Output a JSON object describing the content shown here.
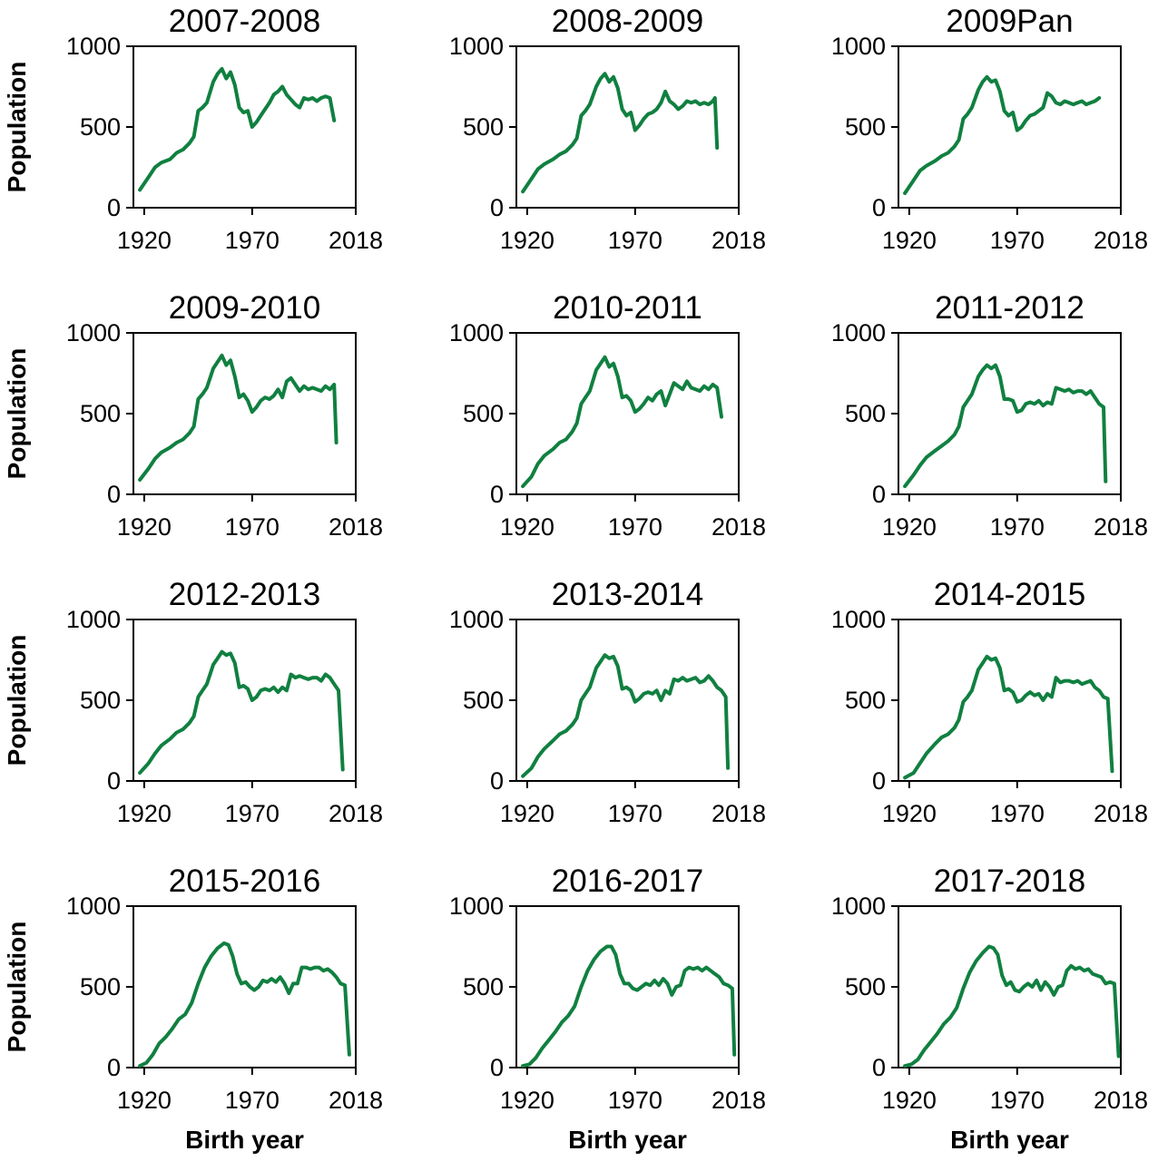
{
  "line_color": "#108040",
  "chart_data": [
    {
      "type": "line",
      "title": "2007-2008",
      "xlabel": "",
      "ylabel": "Population",
      "xlim": [
        1915,
        2018
      ],
      "ylim": [
        0,
        1000
      ],
      "xticks": [
        1920,
        1970,
        2018
      ],
      "yticks": [
        0,
        500,
        1000
      ],
      "x": [
        1918,
        1922,
        1925,
        1928,
        1932,
        1935,
        1938,
        1941,
        1943,
        1945,
        1947,
        1949,
        1952,
        1954,
        1956,
        1958,
        1960,
        1962,
        1964,
        1966,
        1968,
        1970,
        1972,
        1974,
        1976,
        1978,
        1980,
        1982,
        1984,
        1986,
        1988,
        1990,
        1992,
        1994,
        1996,
        1998,
        2000,
        2002,
        2004,
        2006,
        2008
      ],
      "y": [
        110,
        190,
        250,
        280,
        300,
        340,
        360,
        400,
        440,
        600,
        620,
        650,
        780,
        830,
        860,
        800,
        840,
        760,
        620,
        590,
        600,
        500,
        530,
        570,
        610,
        650,
        700,
        720,
        750,
        700,
        670,
        640,
        620,
        680,
        670,
        680,
        660,
        680,
        690,
        680,
        540
      ]
    },
    {
      "type": "line",
      "title": "2008-2009",
      "xlabel": "",
      "ylabel": "",
      "xlim": [
        1915,
        2018
      ],
      "ylim": [
        0,
        1000
      ],
      "xticks": [
        1920,
        1970,
        2018
      ],
      "yticks": [
        0,
        500,
        1000
      ],
      "x": [
        1918,
        1922,
        1925,
        1928,
        1932,
        1935,
        1938,
        1941,
        1943,
        1945,
        1947,
        1949,
        1952,
        1954,
        1956,
        1958,
        1960,
        1962,
        1964,
        1966,
        1968,
        1970,
        1972,
        1974,
        1976,
        1978,
        1980,
        1982,
        1984,
        1986,
        1988,
        1990,
        1992,
        1994,
        1996,
        1998,
        2000,
        2002,
        2004,
        2006,
        2007,
        2008
      ],
      "y": [
        100,
        180,
        240,
        270,
        300,
        330,
        350,
        390,
        430,
        570,
        600,
        640,
        750,
        800,
        830,
        780,
        810,
        740,
        610,
        570,
        590,
        480,
        510,
        550,
        580,
        590,
        610,
        650,
        720,
        660,
        640,
        610,
        630,
        660,
        650,
        660,
        640,
        650,
        640,
        660,
        680,
        370
      ]
    },
    {
      "type": "line",
      "title": "2009Pan",
      "xlabel": "",
      "ylabel": "",
      "xlim": [
        1915,
        2018
      ],
      "ylim": [
        0,
        1000
      ],
      "xticks": [
        1920,
        1970,
        2018
      ],
      "yticks": [
        0,
        500,
        1000
      ],
      "x": [
        1918,
        1922,
        1925,
        1928,
        1932,
        1935,
        1938,
        1941,
        1943,
        1945,
        1947,
        1949,
        1952,
        1954,
        1956,
        1958,
        1960,
        1962,
        1964,
        1966,
        1968,
        1970,
        1972,
        1974,
        1976,
        1978,
        1980,
        1982,
        1984,
        1986,
        1988,
        1990,
        1992,
        1994,
        1996,
        1998,
        2000,
        2002,
        2004,
        2006,
        2008
      ],
      "y": [
        90,
        170,
        230,
        260,
        290,
        320,
        340,
        380,
        420,
        550,
        580,
        620,
        730,
        780,
        810,
        780,
        790,
        720,
        600,
        570,
        590,
        480,
        500,
        540,
        570,
        580,
        600,
        620,
        710,
        690,
        650,
        640,
        660,
        650,
        640,
        650,
        660,
        640,
        650,
        660,
        680
      ]
    },
    {
      "type": "line",
      "title": "2009-2010",
      "xlabel": "",
      "ylabel": "Population",
      "xlim": [
        1915,
        2018
      ],
      "ylim": [
        0,
        1000
      ],
      "xticks": [
        1920,
        1970,
        2018
      ],
      "yticks": [
        0,
        500,
        1000
      ],
      "x": [
        1918,
        1922,
        1925,
        1928,
        1932,
        1935,
        1938,
        1941,
        1943,
        1945,
        1947,
        1949,
        1952,
        1954,
        1956,
        1958,
        1960,
        1962,
        1964,
        1966,
        1968,
        1970,
        1972,
        1974,
        1976,
        1978,
        1980,
        1982,
        1984,
        1986,
        1988,
        1990,
        1992,
        1994,
        1996,
        1998,
        2000,
        2002,
        2004,
        2006,
        2008,
        2009
      ],
      "y": [
        90,
        160,
        220,
        260,
        290,
        320,
        340,
        380,
        420,
        590,
        620,
        660,
        780,
        820,
        860,
        800,
        830,
        730,
        600,
        620,
        580,
        510,
        540,
        580,
        600,
        590,
        610,
        650,
        600,
        700,
        720,
        680,
        640,
        670,
        650,
        660,
        650,
        640,
        670,
        650,
        680,
        320
      ]
    },
    {
      "type": "line",
      "title": "2010-2011",
      "xlabel": "",
      "ylabel": "",
      "xlim": [
        1915,
        2018
      ],
      "ylim": [
        0,
        1000
      ],
      "xticks": [
        1920,
        1970,
        2018
      ],
      "yticks": [
        0,
        500,
        1000
      ],
      "x": [
        1918,
        1922,
        1925,
        1928,
        1932,
        1935,
        1938,
        1941,
        1943,
        1945,
        1947,
        1949,
        1952,
        1954,
        1956,
        1958,
        1960,
        1962,
        1964,
        1966,
        1968,
        1970,
        1972,
        1974,
        1976,
        1978,
        1980,
        1982,
        1984,
        1986,
        1988,
        1990,
        1992,
        1994,
        1996,
        1998,
        2000,
        2002,
        2004,
        2006,
        2008,
        2010
      ],
      "y": [
        50,
        110,
        190,
        240,
        280,
        320,
        340,
        390,
        440,
        560,
        600,
        640,
        770,
        810,
        850,
        790,
        810,
        730,
        600,
        610,
        580,
        510,
        530,
        560,
        600,
        580,
        620,
        640,
        550,
        620,
        690,
        670,
        650,
        700,
        660,
        650,
        640,
        670,
        650,
        680,
        660,
        480
      ]
    },
    {
      "type": "line",
      "title": "2011-2012",
      "xlabel": "",
      "ylabel": "",
      "xlim": [
        1915,
        2018
      ],
      "ylim": [
        0,
        1000
      ],
      "xticks": [
        1920,
        1970,
        2018
      ],
      "yticks": [
        0,
        500,
        1000
      ],
      "x": [
        1918,
        1922,
        1925,
        1928,
        1932,
        1935,
        1938,
        1941,
        1943,
        1945,
        1947,
        1949,
        1952,
        1954,
        1956,
        1958,
        1960,
        1962,
        1964,
        1966,
        1968,
        1970,
        1972,
        1974,
        1976,
        1978,
        1980,
        1982,
        1984,
        1986,
        1988,
        1990,
        1992,
        1994,
        1996,
        1998,
        2000,
        2002,
        2004,
        2006,
        2008,
        2010,
        2011
      ],
      "y": [
        50,
        120,
        180,
        230,
        270,
        300,
        330,
        370,
        420,
        540,
        580,
        620,
        730,
        770,
        800,
        780,
        800,
        730,
        590,
        590,
        580,
        510,
        520,
        560,
        570,
        560,
        580,
        550,
        570,
        560,
        660,
        650,
        640,
        650,
        630,
        640,
        640,
        620,
        640,
        600,
        560,
        540,
        80
      ]
    },
    {
      "type": "line",
      "title": "2012-2013",
      "xlabel": "",
      "ylabel": "Population",
      "xlim": [
        1915,
        2018
      ],
      "ylim": [
        0,
        1000
      ],
      "xticks": [
        1920,
        1970,
        2018
      ],
      "yticks": [
        0,
        500,
        1000
      ],
      "x": [
        1918,
        1922,
        1925,
        1928,
        1932,
        1935,
        1938,
        1941,
        1943,
        1945,
        1947,
        1949,
        1952,
        1954,
        1956,
        1958,
        1960,
        1962,
        1964,
        1966,
        1968,
        1970,
        1972,
        1974,
        1976,
        1978,
        1980,
        1982,
        1984,
        1986,
        1988,
        1990,
        1992,
        1994,
        1996,
        1998,
        2000,
        2002,
        2004,
        2006,
        2008,
        2010,
        2012
      ],
      "y": [
        50,
        110,
        170,
        220,
        260,
        300,
        320,
        360,
        400,
        520,
        560,
        600,
        720,
        760,
        800,
        780,
        790,
        730,
        580,
        590,
        570,
        500,
        520,
        560,
        570,
        560,
        580,
        550,
        580,
        560,
        660,
        640,
        650,
        640,
        630,
        640,
        640,
        620,
        660,
        640,
        600,
        560,
        70
      ]
    },
    {
      "type": "line",
      "title": "2013-2014",
      "xlabel": "",
      "ylabel": "",
      "xlim": [
        1915,
        2018
      ],
      "ylim": [
        0,
        1000
      ],
      "xticks": [
        1920,
        1970,
        2018
      ],
      "yticks": [
        0,
        500,
        1000
      ],
      "x": [
        1918,
        1922,
        1925,
        1928,
        1932,
        1935,
        1938,
        1941,
        1943,
        1945,
        1947,
        1949,
        1952,
        1954,
        1956,
        1958,
        1960,
        1962,
        1964,
        1966,
        1968,
        1970,
        1972,
        1974,
        1976,
        1978,
        1980,
        1982,
        1984,
        1986,
        1988,
        1990,
        1992,
        1994,
        1996,
        1998,
        2000,
        2002,
        2004,
        2006,
        2008,
        2010,
        2012,
        2013
      ],
      "y": [
        30,
        80,
        150,
        200,
        250,
        290,
        310,
        350,
        390,
        500,
        540,
        580,
        700,
        740,
        780,
        760,
        770,
        710,
        570,
        580,
        560,
        490,
        510,
        540,
        550,
        540,
        560,
        500,
        560,
        540,
        630,
        620,
        640,
        620,
        630,
        640,
        610,
        620,
        650,
        620,
        580,
        560,
        520,
        80
      ]
    },
    {
      "type": "line",
      "title": "2014-2015",
      "xlabel": "",
      "ylabel": "",
      "xlim": [
        1915,
        2018
      ],
      "ylim": [
        0,
        1000
      ],
      "xticks": [
        1920,
        1970,
        2018
      ],
      "yticks": [
        0,
        500,
        1000
      ],
      "x": [
        1918,
        1922,
        1925,
        1928,
        1932,
        1935,
        1938,
        1941,
        1943,
        1945,
        1947,
        1949,
        1952,
        1954,
        1956,
        1958,
        1960,
        1962,
        1964,
        1966,
        1968,
        1970,
        1972,
        1974,
        1976,
        1978,
        1980,
        1982,
        1984,
        1986,
        1988,
        1990,
        1992,
        1994,
        1996,
        1998,
        2000,
        2002,
        2004,
        2006,
        2008,
        2010,
        2012,
        2014
      ],
      "y": [
        20,
        50,
        110,
        170,
        230,
        270,
        290,
        330,
        380,
        490,
        520,
        560,
        690,
        730,
        770,
        750,
        760,
        700,
        560,
        570,
        550,
        490,
        500,
        530,
        550,
        530,
        540,
        500,
        540,
        520,
        640,
        610,
        620,
        620,
        610,
        620,
        600,
        610,
        620,
        580,
        560,
        520,
        510,
        60
      ]
    },
    {
      "type": "line",
      "title": "2015-2016",
      "xlabel": "Birth year",
      "ylabel": "Population",
      "xlim": [
        1915,
        2018
      ],
      "ylim": [
        0,
        1000
      ],
      "xticks": [
        1920,
        1970,
        2018
      ],
      "yticks": [
        0,
        500,
        1000
      ],
      "x": [
        1918,
        1921,
        1924,
        1927,
        1930,
        1933,
        1936,
        1939,
        1942,
        1945,
        1948,
        1951,
        1954,
        1957,
        1959,
        1961,
        1963,
        1965,
        1967,
        1969,
        1971,
        1973,
        1975,
        1977,
        1979,
        1981,
        1983,
        1985,
        1987,
        1989,
        1991,
        1993,
        1995,
        1997,
        1999,
        2001,
        2003,
        2005,
        2007,
        2009,
        2011,
        2013,
        2015
      ],
      "y": [
        10,
        30,
        80,
        150,
        190,
        240,
        300,
        330,
        400,
        520,
        620,
        690,
        740,
        770,
        760,
        690,
        580,
        520,
        530,
        500,
        480,
        500,
        540,
        530,
        550,
        530,
        560,
        520,
        460,
        520,
        520,
        620,
        620,
        610,
        620,
        620,
        600,
        610,
        590,
        560,
        520,
        510,
        80
      ]
    },
    {
      "type": "line",
      "title": "2016-2017",
      "xlabel": "Birth year",
      "ylabel": "",
      "xlim": [
        1915,
        2018
      ],
      "ylim": [
        0,
        1000
      ],
      "xticks": [
        1920,
        1970,
        2018
      ],
      "yticks": [
        0,
        500,
        1000
      ],
      "x": [
        1918,
        1921,
        1924,
        1927,
        1930,
        1933,
        1936,
        1939,
        1942,
        1945,
        1948,
        1951,
        1954,
        1957,
        1959,
        1961,
        1963,
        1965,
        1967,
        1969,
        1971,
        1973,
        1975,
        1977,
        1979,
        1981,
        1983,
        1985,
        1987,
        1989,
        1991,
        1993,
        1995,
        1997,
        1999,
        2001,
        2003,
        2005,
        2007,
        2009,
        2011,
        2013,
        2015,
        2016
      ],
      "y": [
        10,
        20,
        60,
        120,
        170,
        220,
        280,
        320,
        380,
        500,
        600,
        670,
        720,
        750,
        750,
        700,
        580,
        520,
        520,
        490,
        480,
        500,
        520,
        510,
        540,
        510,
        550,
        520,
        450,
        500,
        510,
        600,
        620,
        610,
        620,
        600,
        620,
        600,
        580,
        560,
        520,
        510,
        490,
        80
      ]
    },
    {
      "type": "line",
      "title": "2017-2018",
      "xlabel": "Birth year",
      "ylabel": "",
      "xlim": [
        1915,
        2018
      ],
      "ylim": [
        0,
        1000
      ],
      "xticks": [
        1920,
        1970,
        2018
      ],
      "yticks": [
        0,
        500,
        1000
      ],
      "x": [
        1918,
        1921,
        1924,
        1927,
        1930,
        1933,
        1936,
        1939,
        1942,
        1945,
        1948,
        1951,
        1954,
        1957,
        1959,
        1961,
        1963,
        1965,
        1967,
        1969,
        1971,
        1973,
        1975,
        1977,
        1979,
        1981,
        1983,
        1985,
        1987,
        1989,
        1991,
        1993,
        1995,
        1997,
        1999,
        2001,
        2003,
        2005,
        2007,
        2009,
        2011,
        2013,
        2015,
        2017
      ],
      "y": [
        10,
        20,
        50,
        110,
        160,
        210,
        270,
        310,
        370,
        490,
        590,
        660,
        710,
        750,
        740,
        700,
        570,
        510,
        530,
        480,
        470,
        500,
        520,
        500,
        540,
        480,
        530,
        500,
        450,
        500,
        510,
        600,
        630,
        610,
        620,
        600,
        610,
        580,
        570,
        560,
        520,
        530,
        520,
        70
      ]
    }
  ]
}
